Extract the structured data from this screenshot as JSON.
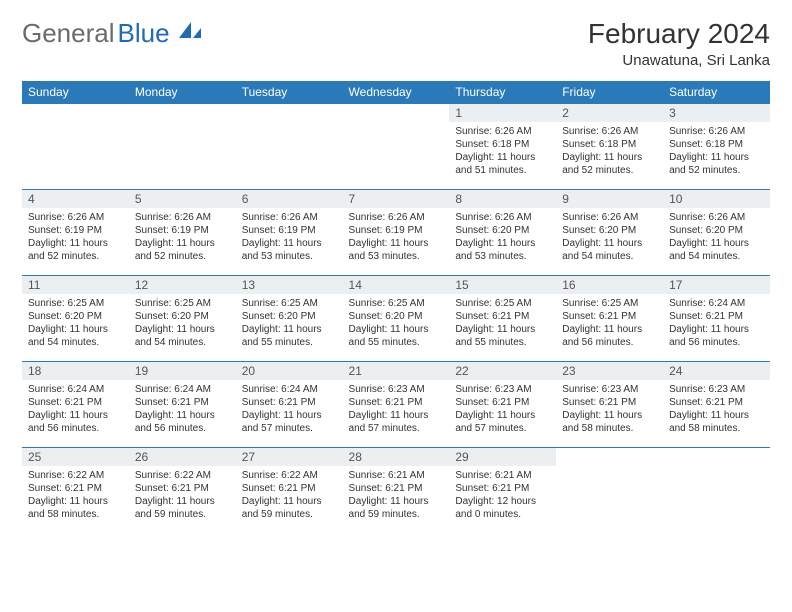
{
  "brand": {
    "part1": "General",
    "part2": "Blue"
  },
  "title": "February 2024",
  "subtitle": "Unawatuna, Sri Lanka",
  "colors": {
    "header_bg": "#2a7ab9",
    "header_text": "#ffffff",
    "daynum_bg": "#eceff1",
    "border": "#2a7ab9",
    "brand_gray": "#6b6b6b",
    "brand_blue": "#1e6bb8"
  },
  "weekdays": [
    "Sunday",
    "Monday",
    "Tuesday",
    "Wednesday",
    "Thursday",
    "Friday",
    "Saturday"
  ],
  "cells": [
    {
      "day": "",
      "sunrise": "",
      "sunset": "",
      "daylight": ""
    },
    {
      "day": "",
      "sunrise": "",
      "sunset": "",
      "daylight": ""
    },
    {
      "day": "",
      "sunrise": "",
      "sunset": "",
      "daylight": ""
    },
    {
      "day": "",
      "sunrise": "",
      "sunset": "",
      "daylight": ""
    },
    {
      "day": "1",
      "sunrise": "Sunrise: 6:26 AM",
      "sunset": "Sunset: 6:18 PM",
      "daylight": "Daylight: 11 hours and 51 minutes."
    },
    {
      "day": "2",
      "sunrise": "Sunrise: 6:26 AM",
      "sunset": "Sunset: 6:18 PM",
      "daylight": "Daylight: 11 hours and 52 minutes."
    },
    {
      "day": "3",
      "sunrise": "Sunrise: 6:26 AM",
      "sunset": "Sunset: 6:18 PM",
      "daylight": "Daylight: 11 hours and 52 minutes."
    },
    {
      "day": "4",
      "sunrise": "Sunrise: 6:26 AM",
      "sunset": "Sunset: 6:19 PM",
      "daylight": "Daylight: 11 hours and 52 minutes."
    },
    {
      "day": "5",
      "sunrise": "Sunrise: 6:26 AM",
      "sunset": "Sunset: 6:19 PM",
      "daylight": "Daylight: 11 hours and 52 minutes."
    },
    {
      "day": "6",
      "sunrise": "Sunrise: 6:26 AM",
      "sunset": "Sunset: 6:19 PM",
      "daylight": "Daylight: 11 hours and 53 minutes."
    },
    {
      "day": "7",
      "sunrise": "Sunrise: 6:26 AM",
      "sunset": "Sunset: 6:19 PM",
      "daylight": "Daylight: 11 hours and 53 minutes."
    },
    {
      "day": "8",
      "sunrise": "Sunrise: 6:26 AM",
      "sunset": "Sunset: 6:20 PM",
      "daylight": "Daylight: 11 hours and 53 minutes."
    },
    {
      "day": "9",
      "sunrise": "Sunrise: 6:26 AM",
      "sunset": "Sunset: 6:20 PM",
      "daylight": "Daylight: 11 hours and 54 minutes."
    },
    {
      "day": "10",
      "sunrise": "Sunrise: 6:26 AM",
      "sunset": "Sunset: 6:20 PM",
      "daylight": "Daylight: 11 hours and 54 minutes."
    },
    {
      "day": "11",
      "sunrise": "Sunrise: 6:25 AM",
      "sunset": "Sunset: 6:20 PM",
      "daylight": "Daylight: 11 hours and 54 minutes."
    },
    {
      "day": "12",
      "sunrise": "Sunrise: 6:25 AM",
      "sunset": "Sunset: 6:20 PM",
      "daylight": "Daylight: 11 hours and 54 minutes."
    },
    {
      "day": "13",
      "sunrise": "Sunrise: 6:25 AM",
      "sunset": "Sunset: 6:20 PM",
      "daylight": "Daylight: 11 hours and 55 minutes."
    },
    {
      "day": "14",
      "sunrise": "Sunrise: 6:25 AM",
      "sunset": "Sunset: 6:20 PM",
      "daylight": "Daylight: 11 hours and 55 minutes."
    },
    {
      "day": "15",
      "sunrise": "Sunrise: 6:25 AM",
      "sunset": "Sunset: 6:21 PM",
      "daylight": "Daylight: 11 hours and 55 minutes."
    },
    {
      "day": "16",
      "sunrise": "Sunrise: 6:25 AM",
      "sunset": "Sunset: 6:21 PM",
      "daylight": "Daylight: 11 hours and 56 minutes."
    },
    {
      "day": "17",
      "sunrise": "Sunrise: 6:24 AM",
      "sunset": "Sunset: 6:21 PM",
      "daylight": "Daylight: 11 hours and 56 minutes."
    },
    {
      "day": "18",
      "sunrise": "Sunrise: 6:24 AM",
      "sunset": "Sunset: 6:21 PM",
      "daylight": "Daylight: 11 hours and 56 minutes."
    },
    {
      "day": "19",
      "sunrise": "Sunrise: 6:24 AM",
      "sunset": "Sunset: 6:21 PM",
      "daylight": "Daylight: 11 hours and 56 minutes."
    },
    {
      "day": "20",
      "sunrise": "Sunrise: 6:24 AM",
      "sunset": "Sunset: 6:21 PM",
      "daylight": "Daylight: 11 hours and 57 minutes."
    },
    {
      "day": "21",
      "sunrise": "Sunrise: 6:23 AM",
      "sunset": "Sunset: 6:21 PM",
      "daylight": "Daylight: 11 hours and 57 minutes."
    },
    {
      "day": "22",
      "sunrise": "Sunrise: 6:23 AM",
      "sunset": "Sunset: 6:21 PM",
      "daylight": "Daylight: 11 hours and 57 minutes."
    },
    {
      "day": "23",
      "sunrise": "Sunrise: 6:23 AM",
      "sunset": "Sunset: 6:21 PM",
      "daylight": "Daylight: 11 hours and 58 minutes."
    },
    {
      "day": "24",
      "sunrise": "Sunrise: 6:23 AM",
      "sunset": "Sunset: 6:21 PM",
      "daylight": "Daylight: 11 hours and 58 minutes."
    },
    {
      "day": "25",
      "sunrise": "Sunrise: 6:22 AM",
      "sunset": "Sunset: 6:21 PM",
      "daylight": "Daylight: 11 hours and 58 minutes."
    },
    {
      "day": "26",
      "sunrise": "Sunrise: 6:22 AM",
      "sunset": "Sunset: 6:21 PM",
      "daylight": "Daylight: 11 hours and 59 minutes."
    },
    {
      "day": "27",
      "sunrise": "Sunrise: 6:22 AM",
      "sunset": "Sunset: 6:21 PM",
      "daylight": "Daylight: 11 hours and 59 minutes."
    },
    {
      "day": "28",
      "sunrise": "Sunrise: 6:21 AM",
      "sunset": "Sunset: 6:21 PM",
      "daylight": "Daylight: 11 hours and 59 minutes."
    },
    {
      "day": "29",
      "sunrise": "Sunrise: 6:21 AM",
      "sunset": "Sunset: 6:21 PM",
      "daylight": "Daylight: 12 hours and 0 minutes."
    },
    {
      "day": "",
      "sunrise": "",
      "sunset": "",
      "daylight": ""
    },
    {
      "day": "",
      "sunrise": "",
      "sunset": "",
      "daylight": ""
    }
  ]
}
